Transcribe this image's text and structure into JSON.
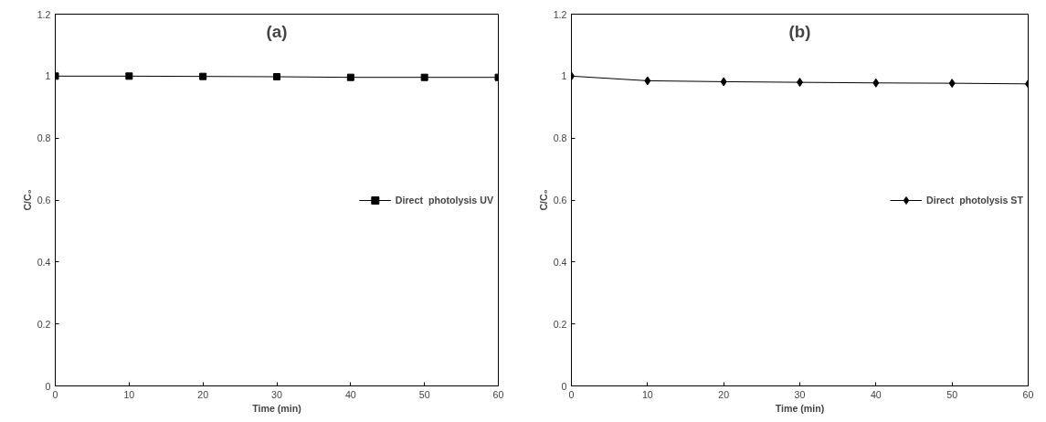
{
  "chart_data": [
    {
      "type": "line",
      "title": "(a)",
      "xlabel": "Time (min)",
      "ylabel": "C/C₀",
      "x": [
        0,
        10,
        20,
        30,
        40,
        50,
        60
      ],
      "series": [
        {
          "name": "Direct  photolysis UV",
          "color": "#000000",
          "values": [
            1,
            1,
            0.999,
            0.998,
            0.996,
            0.996,
            0.996
          ]
        }
      ],
      "xlim": [
        0,
        60
      ],
      "xticks": [
        0,
        10,
        20,
        30,
        40,
        50,
        60
      ],
      "ylim": [
        0,
        1.2
      ],
      "yticks": [
        0,
        0.2,
        0.4,
        0.6,
        0.8,
        1,
        1.2
      ],
      "grid": false,
      "legend": "right",
      "marker": "square",
      "line_style": "solid"
    },
    {
      "type": "line",
      "title": "(b)",
      "xlabel": "Time (min)",
      "ylabel": "C/C₀",
      "x": [
        0,
        10,
        20,
        30,
        40,
        50,
        60
      ],
      "series": [
        {
          "name": "Direct  photolysis ST",
          "color": "#000000",
          "values": [
            1,
            0.985,
            0.982,
            0.98,
            0.978,
            0.977,
            0.975
          ]
        }
      ],
      "xlim": [
        0,
        60
      ],
      "xticks": [
        0,
        10,
        20,
        30,
        40,
        50,
        60
      ],
      "ylim": [
        0,
        1.2
      ],
      "yticks": [
        0,
        0.2,
        0.4,
        0.6,
        0.8,
        1,
        1.2
      ],
      "grid": false,
      "legend": "right",
      "marker": "diamond",
      "line_style": "solid"
    }
  ]
}
